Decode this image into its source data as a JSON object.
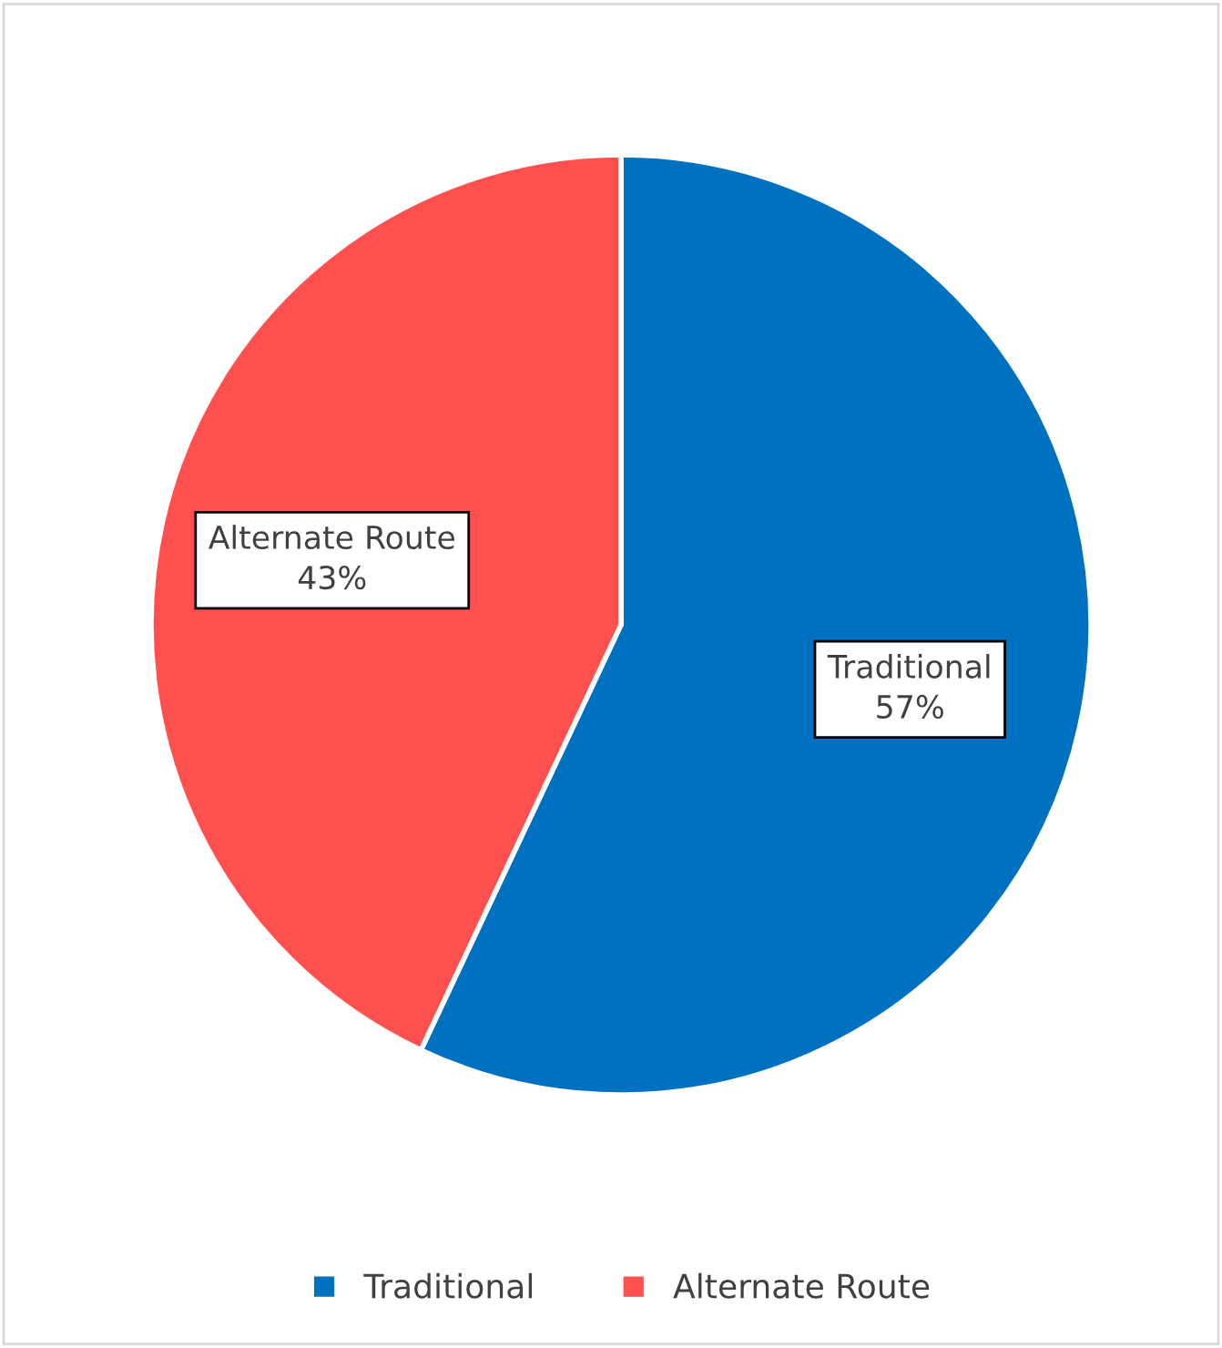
{
  "chart_data": {
    "type": "pie",
    "categories": [
      "Traditional",
      "Alternate Route"
    ],
    "values": [
      57,
      43
    ],
    "colors": [
      "#0070c0",
      "#ff5050"
    ],
    "value_labels": [
      "57%",
      "43%"
    ],
    "legend": "bottom"
  }
}
